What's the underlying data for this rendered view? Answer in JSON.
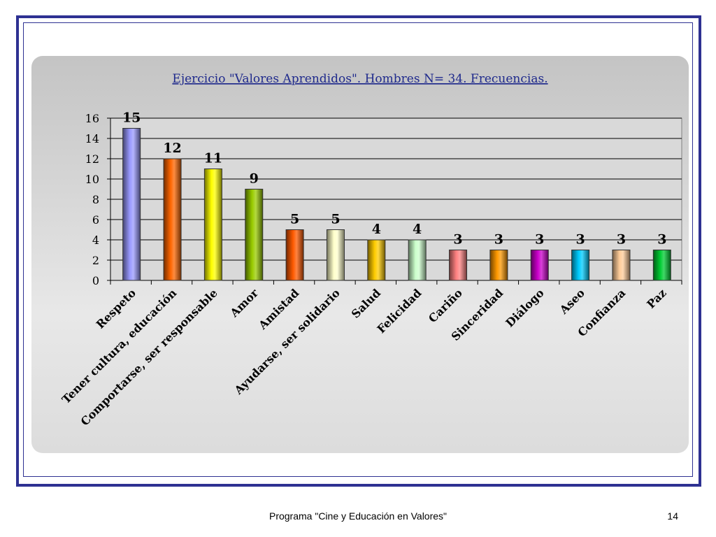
{
  "chart_data": {
    "type": "bar",
    "title": "Ejercicio \"Valores Aprendidos\". Hombres N= 34. Frecuencias.",
    "xlabel": "",
    "ylabel": "",
    "ylim": [
      0,
      16
    ],
    "yticks": [
      "0",
      "2",
      "4",
      "6",
      "8",
      "10",
      "12",
      "14",
      "16"
    ],
    "grid": true,
    "categories": [
      "Respeto",
      "Tener cultura, educación",
      "Comportarse, ser responsable",
      "Amor",
      "Amistad",
      "Ayudarse, ser solidario",
      "Salud",
      "Felicidad",
      "Cariño",
      "Sinceridad",
      "Diálogo",
      "Aseo",
      "Confianza",
      "Paz"
    ],
    "values": [
      15,
      12,
      11,
      9,
      5,
      5,
      4,
      4,
      3,
      3,
      3,
      3,
      3,
      3
    ],
    "colors": [
      "#9999ff",
      "#ff6600",
      "#ffff00",
      "#99cc00",
      "#ff5a00",
      "#ffffcc",
      "#ffcc00",
      "#ccffcc",
      "#ff8080",
      "#ff9900",
      "#cc00cc",
      "#00ccff",
      "#ffcc99",
      "#00cc33"
    ]
  },
  "footer": {
    "title": "Programa \"Cine y Educación en Valores\"",
    "page": "14"
  }
}
